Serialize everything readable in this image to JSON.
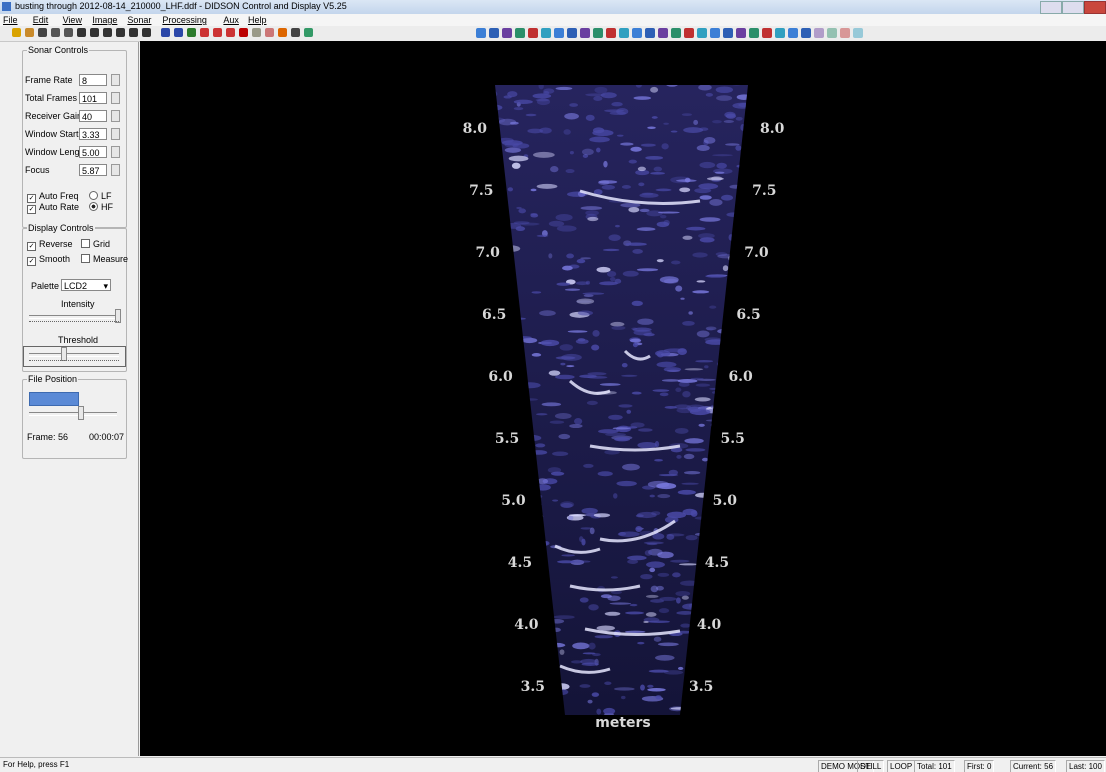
{
  "window": {
    "title": "busting through 2012-08-14_210000_LHF.ddf - DIDSON Control and Display  V5.25"
  },
  "menu": [
    "File",
    "Edit",
    "View",
    "Image",
    "Sonar",
    "Processing",
    "Aux",
    "Help"
  ],
  "sonar_controls": {
    "title": "Sonar Controls",
    "fields": [
      {
        "label": "Frame Rate",
        "value": "8"
      },
      {
        "label": "Total Frames",
        "value": "101"
      },
      {
        "label": "Receiver Gain",
        "value": "40"
      },
      {
        "label": "Window Start",
        "value": "3.33"
      },
      {
        "label": "Window Length",
        "value": "5.00"
      },
      {
        "label": "Focus",
        "value": "5.87"
      }
    ],
    "options": [
      {
        "label": "Auto Freq",
        "kind": "check",
        "checked": true
      },
      {
        "label": "LF",
        "kind": "radio",
        "checked": false
      },
      {
        "label": "Auto Rate",
        "kind": "check",
        "checked": true
      },
      {
        "label": "HF",
        "kind": "radio",
        "checked": true
      }
    ]
  },
  "display_controls": {
    "title": "Display Controls",
    "options": [
      {
        "label": "Reverse",
        "checked": true
      },
      {
        "label": "Grid",
        "checked": false
      },
      {
        "label": "Smooth",
        "checked": true
      },
      {
        "label": "Measure",
        "checked": false
      }
    ],
    "palette_label": "Palette",
    "palette": "LCD2",
    "intensity_label": "Intensity",
    "threshold_label": "Threshold"
  },
  "file_position": {
    "title": "File Position",
    "frame": "Frame: 56",
    "time": "00:00:07"
  },
  "sonar": {
    "range_labels": [
      "8.0",
      "7.5",
      "7.0",
      "6.5",
      "6.0",
      "5.5",
      "5.0",
      "4.5",
      "4.0",
      "3.5"
    ],
    "unit": "meters"
  },
  "status": {
    "help": "For Help, press F1",
    "panes": [
      "DEMO MODE",
      "STILL",
      "LOOP",
      "Total: 101",
      "First: 0",
      "Current: 56",
      "Last: 100"
    ]
  }
}
